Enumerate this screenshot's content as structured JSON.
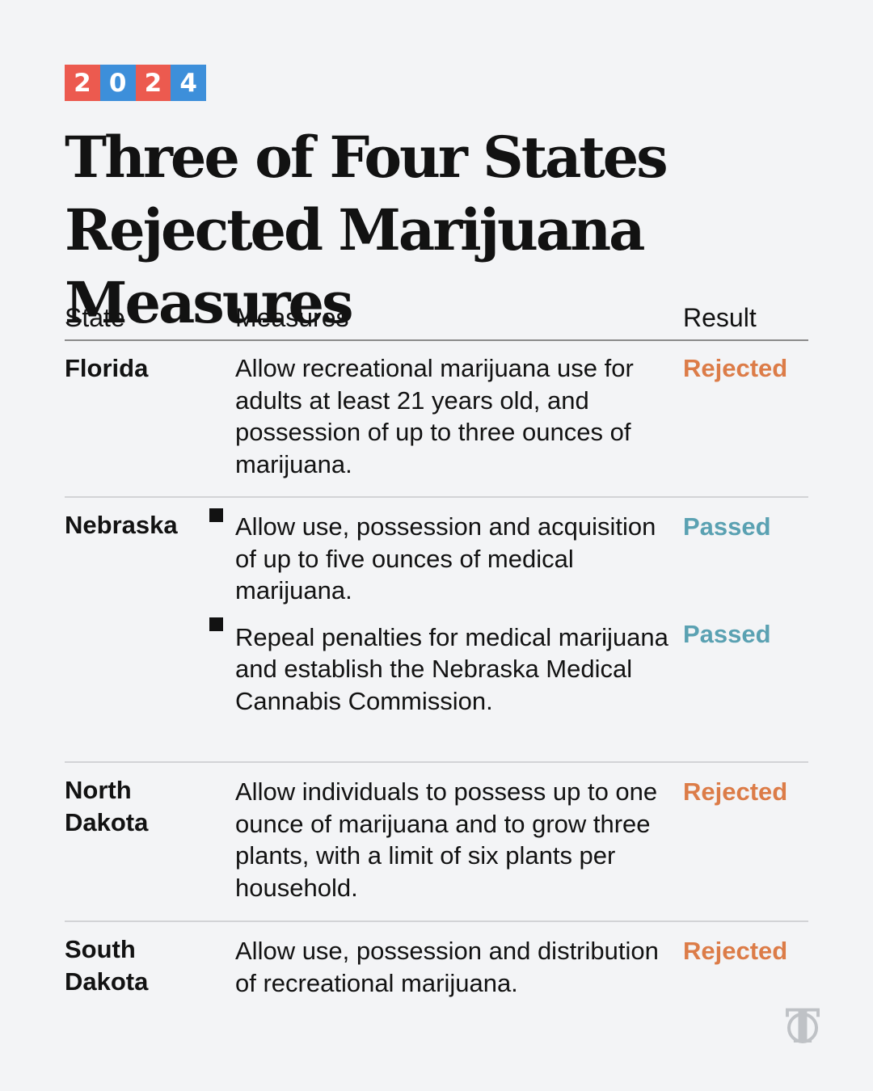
{
  "badge": {
    "digits": [
      "2",
      "0",
      "2",
      "4"
    ]
  },
  "title": "Three of Four States Rejected Marijuana Measures",
  "table": {
    "headers": {
      "state": "State",
      "measures": "Measures",
      "result": "Result"
    },
    "rows": [
      {
        "state": "Florida",
        "measures": [
          {
            "text": "Allow recreational marijuana use for adults at least 21 years old, and possession of up to three ounces of marijuana.",
            "result": "Rejected"
          }
        ]
      },
      {
        "state": "Nebraska",
        "measures": [
          {
            "text": "Allow use, possession and acquisition of up to five ounces of medical marijuana.",
            "result": "Passed"
          },
          {
            "text": "Repeal penalties for medical marijuana and establish the Nebraska Medical Cannabis Commission.",
            "result": "Passed"
          }
        ]
      },
      {
        "state": "North Dakota",
        "measures": [
          {
            "text": "Allow individuals to possess up to one ounce of marijuana and to grow three plants, with a limit of six plants per household.",
            "result": "Rejected"
          }
        ]
      },
      {
        "state": "South Dakota",
        "measures": [
          {
            "text": "Allow use, possession and distribution of recreational marijuana.",
            "result": "Rejected"
          }
        ]
      }
    ]
  },
  "colors": {
    "rejected": "#dc7c48",
    "passed": "#5aa1b2",
    "badge_red": "#ec5a4f",
    "badge_blue": "#3d8fda"
  },
  "icons": {
    "logo": "nyt-logo-icon",
    "bullet": "square-bullet-icon"
  },
  "chart_data": {
    "type": "table",
    "title": "Three of Four States Rejected Marijuana Measures",
    "columns": [
      "State",
      "Measures",
      "Result"
    ],
    "rows": [
      [
        "Florida",
        "Allow recreational marijuana use for adults at least 21 years old, and possession of up to three ounces of marijuana.",
        "Rejected"
      ],
      [
        "Nebraska",
        "Allow use, possession and acquisition of up to five ounces of medical marijuana.",
        "Passed"
      ],
      [
        "Nebraska",
        "Repeal penalties for medical marijuana and establish the Nebraska Medical Cannabis Commission.",
        "Passed"
      ],
      [
        "North Dakota",
        "Allow individuals to possess up to one ounce of marijuana and to grow three plants, with a limit of six plants per household.",
        "Rejected"
      ],
      [
        "South Dakota",
        "Allow use, possession and distribution of recreational marijuana.",
        "Rejected"
      ]
    ]
  }
}
